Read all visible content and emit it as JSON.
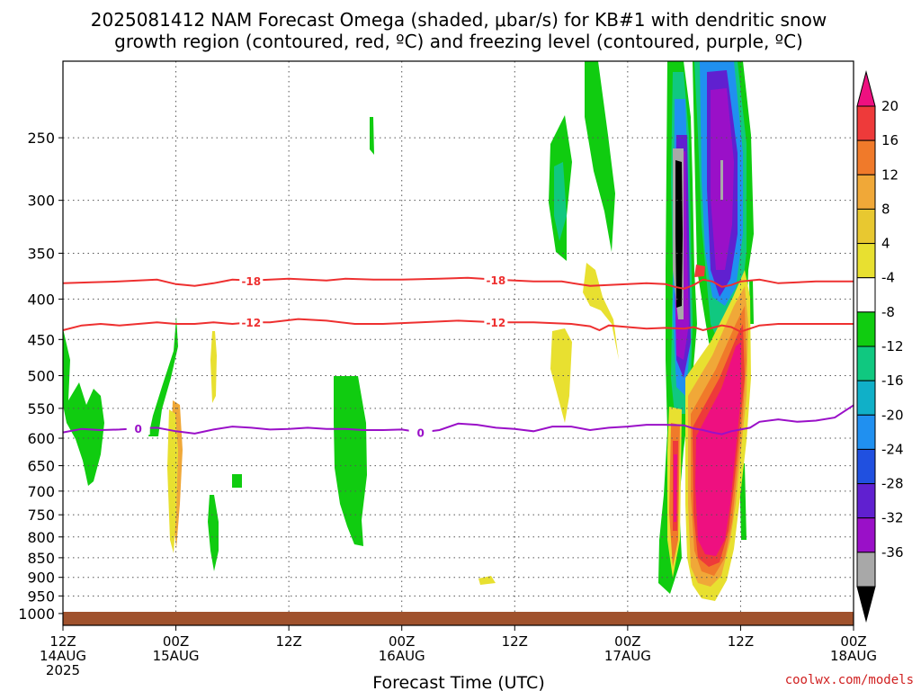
{
  "title_line1": "2025081412 NAM Forecast Omega (shaded, μbar/s) for KB#1 with dendritic snow",
  "title_line2": "growth region (contoured, red, ºC) and freezing level (contoured, purple, ºC)",
  "credit": "coolwx.com/models",
  "chart_data": {
    "type": "heatmap",
    "title": "2025081412 NAM Forecast Omega (shaded, μbar/s) for KB#1 with dendritic snow growth region (contoured, red, ºC) and freezing level (contoured, purple, ºC)",
    "xlabel": "Forecast Time (UTC)",
    "ylabel": "",
    "x_range_hours": [
      0,
      84
    ],
    "x_ticks": [
      {
        "h": 0,
        "l1": "12Z",
        "l2": "14AUG",
        "l3": "2025"
      },
      {
        "h": 12,
        "l1": "00Z",
        "l2": "15AUG",
        "l3": ""
      },
      {
        "h": 24,
        "l1": "12Z",
        "l2": "",
        "l3": ""
      },
      {
        "h": 36,
        "l1": "00Z",
        "l2": "16AUG",
        "l3": ""
      },
      {
        "h": 48,
        "l1": "12Z",
        "l2": "",
        "l3": ""
      },
      {
        "h": 60,
        "l1": "00Z",
        "l2": "17AUG",
        "l3": ""
      },
      {
        "h": 72,
        "l1": "12Z",
        "l2": "",
        "l3": ""
      },
      {
        "h": 84,
        "l1": "00Z",
        "l2": "18AUG",
        "l3": ""
      }
    ],
    "y_ticks": [
      250,
      300,
      350,
      400,
      450,
      500,
      550,
      600,
      650,
      700,
      750,
      800,
      850,
      900,
      950,
      1000
    ],
    "y_scale": "log-pressure",
    "y_range_hpa": [
      200,
      1035
    ],
    "grid": true,
    "colorbar": {
      "labels": [
        20,
        16,
        12,
        8,
        4,
        -4,
        -8,
        -12,
        -16,
        -20,
        -24,
        -28,
        -32,
        -36
      ],
      "colors": [
        "#ee1080",
        "#ee3a3a",
        "#f07a2a",
        "#f0a838",
        "#e8c830",
        "#e8e030",
        "#ffffff",
        "#10cc10",
        "#10c880",
        "#10b0c8",
        "#2090f0",
        "#2050e0",
        "#6020d0",
        "#9a10c8",
        "#a8a8a8",
        "#000000"
      ]
    },
    "contours": [
      {
        "label": "-18",
        "color": "#ee3030",
        "points": [
          [
            0,
            382
          ],
          [
            3,
            381
          ],
          [
            6,
            380
          ],
          [
            10,
            378
          ],
          [
            12,
            383
          ],
          [
            14,
            385
          ],
          [
            16,
            382
          ],
          [
            18,
            378
          ],
          [
            20,
            379
          ],
          [
            24,
            377
          ],
          [
            28,
            379
          ],
          [
            30,
            377
          ],
          [
            33,
            378
          ],
          [
            36,
            378
          ],
          [
            40,
            377
          ],
          [
            43,
            376
          ],
          [
            46,
            378
          ],
          [
            50,
            380
          ],
          [
            53,
            380
          ],
          [
            56,
            385
          ],
          [
            58,
            384
          ],
          [
            60,
            383
          ],
          [
            62,
            382
          ],
          [
            64,
            383
          ],
          [
            65,
            386
          ],
          [
            66,
            388
          ],
          [
            67,
            384
          ],
          [
            68,
            378
          ],
          [
            69,
            380
          ],
          [
            70,
            386
          ],
          [
            71,
            384
          ],
          [
            72,
            380
          ],
          [
            74,
            378
          ],
          [
            76,
            382
          ],
          [
            80,
            380
          ],
          [
            84,
            380
          ]
        ]
      },
      {
        "label": "-12",
        "color": "#ee3030",
        "points": [
          [
            0,
            438
          ],
          [
            2,
            432
          ],
          [
            4,
            430
          ],
          [
            6,
            432
          ],
          [
            8,
            430
          ],
          [
            10,
            428
          ],
          [
            12,
            430
          ],
          [
            14,
            430
          ],
          [
            16,
            428
          ],
          [
            18,
            430
          ],
          [
            20,
            428
          ],
          [
            22,
            428
          ],
          [
            25,
            424
          ],
          [
            28,
            426
          ],
          [
            31,
            430
          ],
          [
            34,
            430
          ],
          [
            38,
            428
          ],
          [
            42,
            426
          ],
          [
            46,
            428
          ],
          [
            50,
            428
          ],
          [
            54,
            430
          ],
          [
            56,
            433
          ],
          [
            57,
            438
          ],
          [
            58,
            432
          ],
          [
            60,
            434
          ],
          [
            62,
            436
          ],
          [
            64,
            435
          ],
          [
            66,
            436
          ],
          [
            67,
            434
          ],
          [
            68,
            438
          ],
          [
            69,
            435
          ],
          [
            70,
            432
          ],
          [
            71,
            434
          ],
          [
            72,
            440
          ],
          [
            74,
            432
          ],
          [
            76,
            430
          ],
          [
            80,
            430
          ],
          [
            84,
            430
          ]
        ]
      },
      {
        "label": "0",
        "color": "#9a10c8",
        "points": [
          [
            0,
            590
          ],
          [
            2,
            584
          ],
          [
            4,
            586
          ],
          [
            6,
            585
          ],
          [
            8,
            583
          ],
          [
            10,
            582
          ],
          [
            12,
            588
          ],
          [
            14,
            592
          ],
          [
            16,
            585
          ],
          [
            18,
            580
          ],
          [
            20,
            582
          ],
          [
            22,
            585
          ],
          [
            24,
            584
          ],
          [
            26,
            582
          ],
          [
            28,
            584
          ],
          [
            30,
            584
          ],
          [
            32,
            586
          ],
          [
            34,
            586
          ],
          [
            36,
            585
          ],
          [
            38,
            590
          ],
          [
            40,
            586
          ],
          [
            42,
            575
          ],
          [
            44,
            577
          ],
          [
            46,
            582
          ],
          [
            48,
            584
          ],
          [
            50,
            588
          ],
          [
            52,
            580
          ],
          [
            54,
            580
          ],
          [
            56,
            586
          ],
          [
            58,
            582
          ],
          [
            60,
            580
          ],
          [
            62,
            577
          ],
          [
            64,
            577
          ],
          [
            66,
            578
          ],
          [
            67,
            583
          ],
          [
            68,
            586
          ],
          [
            69,
            590
          ],
          [
            70,
            593
          ],
          [
            71,
            588
          ],
          [
            72,
            585
          ],
          [
            73,
            582
          ],
          [
            74,
            572
          ],
          [
            76,
            568
          ],
          [
            78,
            572
          ],
          [
            80,
            570
          ],
          [
            82,
            565
          ],
          [
            84,
            545
          ]
        ]
      }
    ]
  }
}
